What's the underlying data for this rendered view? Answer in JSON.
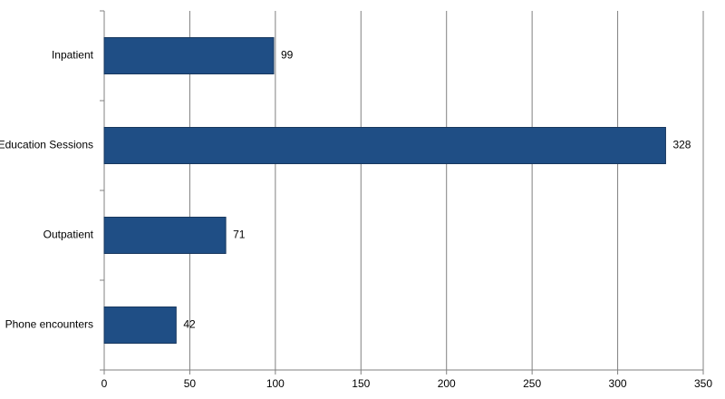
{
  "chart_data": {
    "type": "hbar",
    "categories": [
      "Inpatient",
      "Education Sessions",
      "Outpatient",
      "Phone encounters"
    ],
    "values": [
      99,
      328,
      71,
      42
    ],
    "color": "#1f4e85",
    "xlim": [
      0,
      350
    ],
    "xticks": [
      0,
      50,
      100,
      150,
      200,
      250,
      300,
      350
    ],
    "grid": true
  }
}
